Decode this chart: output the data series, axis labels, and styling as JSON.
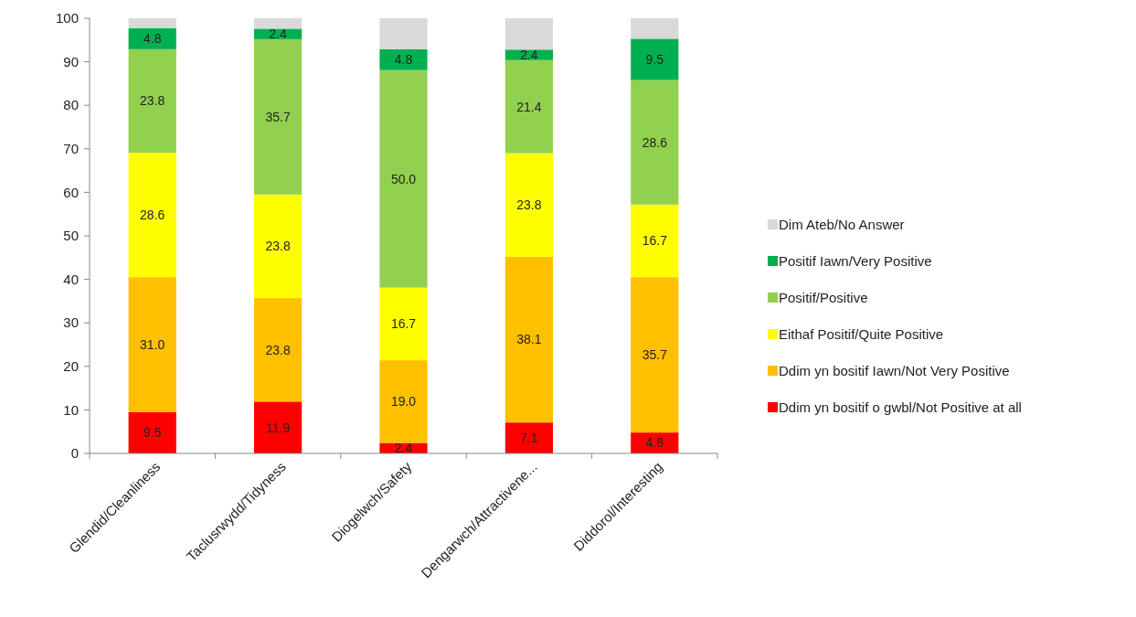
{
  "chart_data": {
    "type": "bar",
    "stacked": true,
    "categories": [
      "Glendid/Cleanliness",
      "Taclusrwydd/Tidyness",
      "Diogelwch/Safety",
      "Dengarwch/Attractivene...",
      "Diddorol/Interesting"
    ],
    "series": [
      {
        "name": "Ddim yn bositif o gwbl/Not Positive at all",
        "color": "#ff0000",
        "values": [
          9.5,
          11.9,
          2.4,
          7.1,
          4.8
        ],
        "value_labels": [
          "9.5",
          "11.9",
          "2.4",
          "7.1",
          "4.8"
        ]
      },
      {
        "name": "Ddim yn bositif Iawn/Not Very Positive",
        "color": "#ffc000",
        "values": [
          31.0,
          23.8,
          19.0,
          38.1,
          35.7
        ],
        "value_labels": [
          "31.0",
          "23.8",
          "19.0",
          "38.1",
          "35.7"
        ]
      },
      {
        "name": "Eithaf Positif/Quite Positive",
        "color": "#ffff00",
        "values": [
          28.6,
          23.8,
          16.7,
          23.8,
          16.7
        ],
        "value_labels": [
          "28.6",
          "23.8",
          "16.7",
          "23.8",
          "16.7"
        ]
      },
      {
        "name": "Positif/Positive",
        "color": "#92d050",
        "values": [
          23.8,
          35.7,
          50.0,
          21.4,
          28.6
        ],
        "value_labels": [
          "23.8",
          "35.7",
          "50.0",
          "21.4",
          "28.6"
        ]
      },
      {
        "name": "Positif Iawn/Very Positive",
        "color": "#00b050",
        "values": [
          4.8,
          2.4,
          4.8,
          2.4,
          9.5
        ],
        "value_labels": [
          "4.8",
          "2.4",
          "4.8",
          "2.4",
          "9.5"
        ]
      },
      {
        "name": "Dim Ateb/No Answer",
        "color": "#d9d9d9",
        "values": [
          2.3,
          2.4,
          7.1,
          7.2,
          4.7
        ],
        "value_labels": [
          null,
          null,
          null,
          null,
          null
        ]
      }
    ],
    "ylim": [
      0,
      100
    ],
    "yticks": [
      0,
      10,
      20,
      30,
      40,
      50,
      60,
      70,
      80,
      90,
      100
    ],
    "grid": false,
    "legend": "right"
  }
}
